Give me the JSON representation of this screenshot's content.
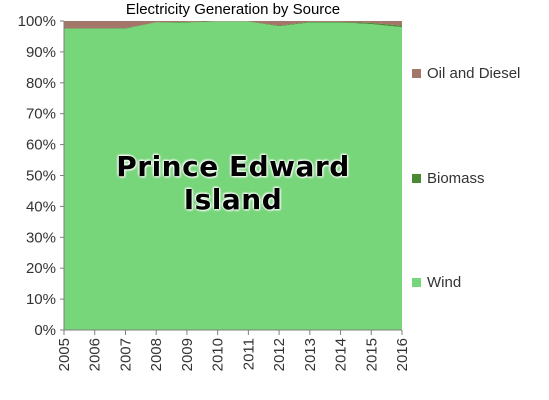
{
  "chart_data": {
    "type": "area",
    "stacked": "percent",
    "title": "Electricity Generation by Source",
    "annotation": "Prince Edward Island",
    "x": [
      "2005",
      "2006",
      "2007",
      "2008",
      "2009",
      "2010",
      "2011",
      "2012",
      "2013",
      "2014",
      "2015",
      "2016"
    ],
    "ylim": [
      0,
      100
    ],
    "yticks": [
      "0%",
      "10%",
      "20%",
      "30%",
      "40%",
      "50%",
      "60%",
      "70%",
      "80%",
      "90%",
      "100%"
    ],
    "grid": false,
    "legend_position": "right",
    "series": [
      {
        "name": "Wind",
        "color": "#77d57a",
        "values": [
          97.5,
          97.5,
          97.5,
          99.5,
          99.5,
          99.8,
          99.8,
          98.3,
          99.5,
          99.5,
          99.0,
          98.0
        ]
      },
      {
        "name": "Biomass",
        "color": "#4a8a34",
        "values": [
          0.2,
          0.2,
          0.2,
          0.1,
          0.2,
          0.1,
          0.1,
          0.2,
          0.2,
          0.2,
          0.4,
          0.5
        ]
      },
      {
        "name": "Oil and Diesel",
        "color": "#a27669",
        "values": [
          2.3,
          2.3,
          2.3,
          0.4,
          0.3,
          0.1,
          0.1,
          1.5,
          0.3,
          0.3,
          0.6,
          1.5
        ]
      }
    ]
  }
}
